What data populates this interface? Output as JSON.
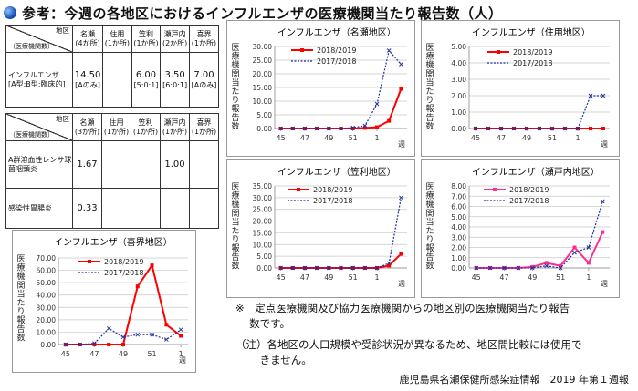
{
  "title": "参考：今週の各地区におけるインフルエンザの医療機関当たり報告数（人）",
  "table1": {
    "corner_top": "地区",
    "corner_bottom": "（医療機関数）",
    "headers": [
      {
        "name": "名瀬",
        "count": "(4か所)"
      },
      {
        "name": "住用",
        "count": "(1か所)"
      },
      {
        "name": "笠利",
        "count": "(1か所)"
      },
      {
        "name": "瀬戸内",
        "count": "(2か所)"
      },
      {
        "name": "喜界",
        "count": "(1か所)"
      }
    ],
    "row_label1": "インフルエンザ",
    "row_label2": "[A型:B型:臨床的]",
    "values": [
      "14.50",
      "",
      "6.00",
      "3.50",
      "7.00"
    ],
    "breakdown": [
      "[Aのみ]",
      "",
      "[5:0:1]",
      "[6:0:1]",
      "[Aのみ]"
    ]
  },
  "table2": {
    "corner_top": "地区",
    "corner_bottom": "（医療機関数）",
    "headers": [
      {
        "name": "名瀬",
        "count": "(3か所)"
      },
      {
        "name": "住用",
        "count": "(1か所)"
      },
      {
        "name": "笠利",
        "count": "(1か所)"
      },
      {
        "name": "瀬戸内",
        "count": "(1か所)"
      },
      {
        "name": "喜界",
        "count": "(1か所)"
      }
    ],
    "rows": [
      {
        "label1": "A群溶血性レンサ球",
        "label2": "菌咽頭炎",
        "values": [
          "1.67",
          "",
          "",
          "1.00",
          ""
        ]
      },
      {
        "label1": "感染性胃腸炎",
        "label2": "",
        "values": [
          "0.33",
          "",
          "",
          "",
          ""
        ]
      }
    ]
  },
  "ylabel_chars": [
    "医",
    "療",
    "機",
    "関",
    "当",
    "た",
    "り",
    "報",
    "告",
    "数"
  ],
  "week_label": "週",
  "colors": {
    "s2019": "#ff0000",
    "s2019_pink": "#ff2d8f",
    "s2018": "#1f2fa0"
  },
  "chart_data": [
    {
      "id": "naze",
      "type": "line",
      "title": "インフルエンザ（名瀬地区）",
      "x_ticks": [
        "45",
        "47",
        "49",
        "51",
        "1"
      ],
      "ylim": [
        0,
        30
      ],
      "yticks": [
        "0.00",
        "5.00",
        "10.00",
        "15.00",
        "20.00",
        "25.00",
        "30.00"
      ],
      "series": [
        {
          "name": "2018/2019",
          "values": [
            0,
            0,
            0,
            0,
            0,
            0,
            0,
            0.2,
            0.5,
            2.8,
            14.5
          ]
        },
        {
          "name": "2017/2018",
          "values": [
            0,
            0,
            0,
            0,
            0,
            0,
            0.3,
            1.0,
            9.0,
            28.5,
            23.5
          ]
        }
      ]
    },
    {
      "id": "sumiyo",
      "type": "line",
      "title": "インフルエンザ（住用地区）",
      "x_ticks": [
        "45",
        "47",
        "49",
        "51",
        "1"
      ],
      "ylim": [
        0,
        5
      ],
      "yticks": [
        "0.00",
        "1.00",
        "2.00",
        "3.00",
        "4.00",
        "5.00"
      ],
      "series": [
        {
          "name": "2018/2019",
          "values": [
            0,
            0,
            0,
            0,
            0,
            0,
            0,
            0,
            0,
            0,
            0
          ]
        },
        {
          "name": "2017/2018",
          "values": [
            0,
            0,
            0,
            0,
            0,
            0,
            0,
            0,
            0,
            2.0,
            2.0
          ]
        }
      ]
    },
    {
      "id": "kasari",
      "type": "line",
      "title": "インフルエンザ（笠利地区）",
      "x_ticks": [
        "45",
        "47",
        "49",
        "51",
        "1"
      ],
      "ylim": [
        0,
        35
      ],
      "yticks": [
        "0.00",
        "5.00",
        "10.00",
        "15.00",
        "20.00",
        "25.00",
        "30.00",
        "35.00"
      ],
      "series": [
        {
          "name": "2018/2019",
          "values": [
            0,
            0,
            0,
            0,
            0,
            0,
            0,
            0,
            0,
            1.0,
            6.0
          ]
        },
        {
          "name": "2017/2018",
          "values": [
            0,
            0,
            0,
            0,
            0,
            0,
            0,
            0,
            0,
            2.0,
            30.0
          ]
        }
      ]
    },
    {
      "id": "setouchi",
      "type": "line",
      "title": "インフルエンザ（瀬戸内地区）",
      "x_ticks": [
        "45",
        "47",
        "49",
        "51",
        "1"
      ],
      "ylim": [
        0,
        8
      ],
      "yticks": [
        "0.00",
        "1.00",
        "2.00",
        "3.00",
        "4.00",
        "5.00",
        "6.00",
        "7.00",
        "8.00"
      ],
      "series": [
        {
          "name": "2018/2019",
          "values": [
            0,
            0,
            0,
            0,
            0.1,
            0.5,
            0.2,
            2.0,
            0.5,
            3.5
          ]
        },
        {
          "name": "2017/2018",
          "values": [
            0,
            0,
            0,
            0,
            0,
            0.2,
            0,
            1.5,
            2.0,
            6.5
          ]
        }
      ]
    },
    {
      "id": "kikai",
      "type": "line",
      "title": "インフルエンザ（喜界地区）",
      "x_ticks": [
        "45",
        "47",
        "49",
        "51",
        "1"
      ],
      "ylim": [
        0,
        70
      ],
      "yticks": [
        "0.00",
        "10.00",
        "20.00",
        "30.00",
        "40.00",
        "50.00",
        "60.00",
        "70.00"
      ],
      "series": [
        {
          "name": "2018/2019",
          "values": [
            0,
            0,
            0,
            0,
            0,
            47,
            64,
            16,
            7
          ]
        },
        {
          "name": "2017/2018",
          "values": [
            0,
            0,
            1,
            13,
            6,
            8,
            8,
            4,
            12
          ]
        }
      ]
    }
  ],
  "notes": [
    "※　定点医療機関及び協力医療機関からの地区別の医療機関当たり報告",
    "　 数です。",
    "（注）各地区の人口規模や受診状況が異なるため、地区間比較には使用で",
    "　　 きません。"
  ],
  "footer": "鹿児島県名瀬保健所感染症情報　2019 年第１週報"
}
